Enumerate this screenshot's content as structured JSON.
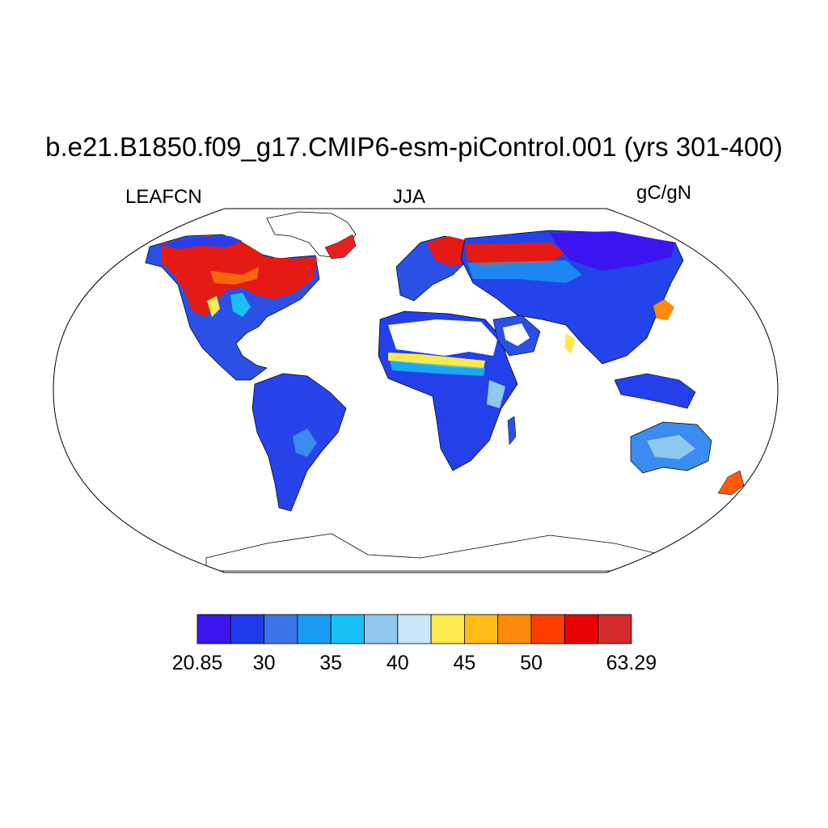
{
  "title": "b.e21.B1850.f09_g17.CMIP6-esm-piControl.001 (yrs 301-400)",
  "left_label": "LEAFCN",
  "center_label": "JJA",
  "right_label": "gC/gN",
  "colorbar": {
    "colors": [
      "#3c14f0",
      "#1f3ae8",
      "#3a74e8",
      "#1a9af2",
      "#18c0f6",
      "#8ec8ee",
      "#c8e6f6",
      "#fde94e",
      "#fdbd16",
      "#fd8a08",
      "#fd3e02",
      "#e80202",
      "#d42a2a"
    ],
    "labels": [
      {
        "text": "20.85",
        "boundary": 0
      },
      {
        "text": "30",
        "boundary": 2
      },
      {
        "text": "35",
        "boundary": 4
      },
      {
        "text": "40",
        "boundary": 6
      },
      {
        "text": "45",
        "boundary": 8
      },
      {
        "text": "50",
        "boundary": 10
      },
      {
        "text": "63.29",
        "boundary": 13
      }
    ]
  }
}
